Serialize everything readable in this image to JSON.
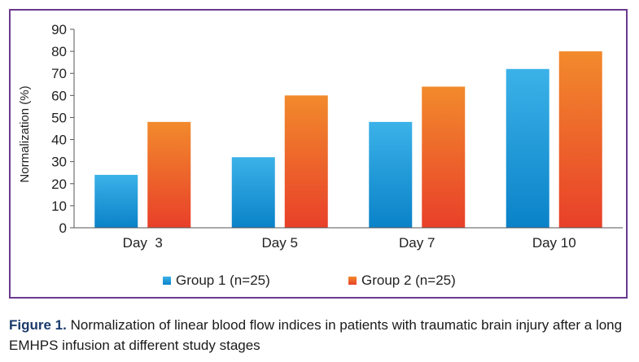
{
  "chart_data": {
    "type": "bar",
    "title": "",
    "xlabel": "",
    "ylabel": "Normalization (%)",
    "ylim": [
      0,
      90
    ],
    "yticks": [
      0,
      10,
      20,
      30,
      40,
      50,
      60,
      70,
      80,
      90
    ],
    "categories": [
      "Day  3",
      "Day 5",
      "Day 7",
      "Day 10"
    ],
    "series": [
      {
        "name": "Group 1 (n=25)",
        "values": [
          24,
          32,
          48,
          72
        ],
        "color_top": "#3bb2e8",
        "color_bottom": "#0a82c8"
      },
      {
        "name": "Group 2 (n=25)",
        "values": [
          48,
          60,
          64,
          80
        ],
        "color_top": "#f28a2c",
        "color_bottom": "#e8402a"
      }
    ],
    "legend_position": "bottom-center",
    "grid": false
  },
  "caption": {
    "label": "Figure 1.",
    "text": " Normalization of linear blood flow indices in patients with traumatic brain injury after a long EMHPS infusion at different study stages"
  },
  "colors": {
    "frame_border": "#6a3a8f",
    "axis": "#555555"
  }
}
